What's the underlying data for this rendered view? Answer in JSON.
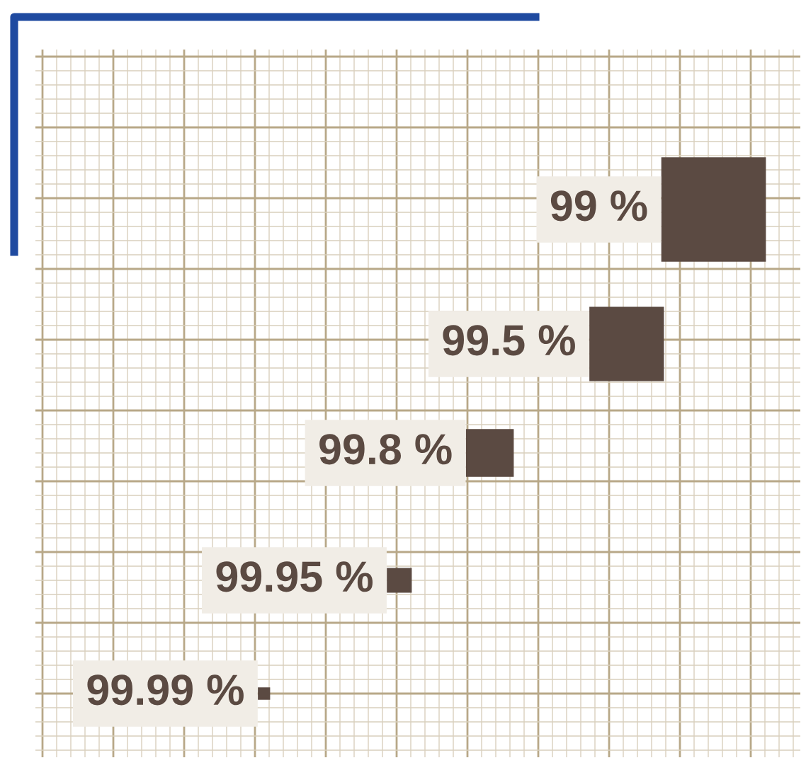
{
  "chart_data": {
    "type": "other",
    "categories": [
      null,
      null,
      null,
      null,
      null
    ],
    "values": [
      99,
      99.5,
      99.8,
      99.95,
      99.99
    ],
    "value_labels": [
      "99 %",
      "99.5 %",
      "99.8 %",
      "99.95 %",
      "99.99 %"
    ],
    "color": "#5b4a42"
  }
}
